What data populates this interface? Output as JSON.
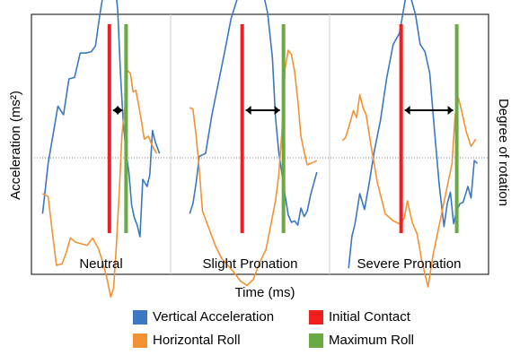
{
  "chart_data": {
    "type": "line",
    "xlabel": "Time (ms)",
    "ylabel": "Acceleration (ms²)",
    "ylabel_right": "Degree of rotation",
    "grid": false,
    "legend_position": "bottom",
    "axis_ranges": {
      "x": [
        0,
        100
      ],
      "y": [
        -100,
        100
      ]
    },
    "panels": [
      {
        "name": "Neutral",
        "initial_contact_x": 56,
        "max_roll_x": 68,
        "vertical_acceleration": [
          [
            8,
            -39
          ],
          [
            12,
            -4
          ],
          [
            19,
            36
          ],
          [
            23,
            30
          ],
          [
            27,
            55
          ],
          [
            31,
            56
          ],
          [
            35,
            73
          ],
          [
            39,
            73
          ],
          [
            43,
            74
          ],
          [
            46,
            78
          ],
          [
            49,
            99
          ],
          [
            52,
            117
          ],
          [
            55,
            113
          ],
          [
            57,
            125
          ],
          [
            60,
            122
          ],
          [
            62,
            103
          ],
          [
            64,
            58
          ],
          [
            66,
            24
          ],
          [
            68,
            4
          ],
          [
            70,
            -10
          ],
          [
            72,
            -33
          ],
          [
            74,
            -42
          ],
          [
            76,
            -47
          ],
          [
            78,
            -55
          ],
          [
            80,
            -15
          ],
          [
            83,
            -20
          ],
          [
            85,
            -12
          ],
          [
            87,
            19
          ],
          [
            89,
            11
          ],
          [
            92,
            3
          ]
        ],
        "horizontal_roll": [
          [
            8,
            -25
          ],
          [
            12,
            -27
          ],
          [
            15,
            -52
          ],
          [
            18,
            -75
          ],
          [
            22,
            -74
          ],
          [
            25,
            -66
          ],
          [
            28,
            -56
          ],
          [
            32,
            -59
          ],
          [
            36,
            -60
          ],
          [
            40,
            -61
          ],
          [
            44,
            -56
          ],
          [
            48,
            -63
          ],
          [
            51,
            -72
          ],
          [
            54,
            -83
          ],
          [
            57,
            -97
          ],
          [
            59,
            -91
          ],
          [
            61,
            -61
          ],
          [
            63,
            -25
          ],
          [
            65,
            16
          ],
          [
            67,
            34
          ],
          [
            69,
            61
          ],
          [
            71,
            59
          ],
          [
            73,
            46
          ],
          [
            75,
            47
          ],
          [
            77,
            37
          ],
          [
            79,
            26
          ],
          [
            81,
            13
          ],
          [
            84,
            15
          ],
          [
            87,
            8
          ],
          [
            90,
            3
          ]
        ]
      },
      {
        "name": "Slight Pronation",
        "initial_contact_x": 45,
        "max_roll_x": 71,
        "vertical_acceleration": [
          [
            12,
            -39
          ],
          [
            14,
            -32
          ],
          [
            16,
            -18
          ],
          [
            18,
            1
          ],
          [
            22,
            3
          ],
          [
            26,
            30
          ],
          [
            30,
            52
          ],
          [
            34,
            74
          ],
          [
            38,
            97
          ],
          [
            42,
            111
          ],
          [
            46,
            122
          ],
          [
            50,
            124
          ],
          [
            54,
            124
          ],
          [
            58,
            116
          ],
          [
            61,
            101
          ],
          [
            64,
            70
          ],
          [
            66,
            28
          ],
          [
            68,
            4
          ],
          [
            70,
            -11
          ],
          [
            72,
            -26
          ],
          [
            74,
            -40
          ],
          [
            76,
            -45
          ],
          [
            78,
            -44
          ],
          [
            80,
            -47
          ],
          [
            82,
            -35
          ],
          [
            84,
            -41
          ],
          [
            86,
            -37
          ],
          [
            88,
            -26
          ],
          [
            90,
            -18
          ],
          [
            92,
            -10
          ]
        ],
        "horizontal_roll": [
          [
            12,
            35
          ],
          [
            14,
            34
          ],
          [
            16,
            16
          ],
          [
            18,
            -8
          ],
          [
            20,
            -37
          ],
          [
            24,
            -49
          ],
          [
            28,
            -61
          ],
          [
            32,
            -70
          ],
          [
            36,
            -75
          ],
          [
            40,
            -80
          ],
          [
            44,
            -86
          ],
          [
            48,
            -89
          ],
          [
            52,
            -85
          ],
          [
            56,
            -73
          ],
          [
            60,
            -64
          ],
          [
            63,
            -47
          ],
          [
            66,
            -30
          ],
          [
            68,
            -12
          ],
          [
            70,
            18
          ],
          [
            72,
            62
          ],
          [
            74,
            75
          ],
          [
            76,
            72
          ],
          [
            78,
            60
          ],
          [
            80,
            40
          ],
          [
            82,
            15
          ],
          [
            84,
            4
          ],
          [
            86,
            -5
          ],
          [
            88,
            -4
          ],
          [
            90,
            -3
          ],
          [
            92,
            -2
          ]
        ]
      },
      {
        "name": "Severe Pronation",
        "initial_contact_x": 45,
        "max_roll_x": 80,
        "vertical_acceleration": [
          [
            12,
            -77
          ],
          [
            14,
            -55
          ],
          [
            16,
            -46
          ],
          [
            19,
            -25
          ],
          [
            22,
            -36
          ],
          [
            25,
            -17
          ],
          [
            28,
            4
          ],
          [
            32,
            26
          ],
          [
            36,
            56
          ],
          [
            40,
            79
          ],
          [
            44,
            87
          ],
          [
            48,
            113
          ],
          [
            51,
            112
          ],
          [
            54,
            100
          ],
          [
            57,
            79
          ],
          [
            60,
            74
          ],
          [
            63,
            59
          ],
          [
            66,
            19
          ],
          [
            69,
            -19
          ],
          [
            72,
            -48
          ],
          [
            74,
            -32
          ],
          [
            76,
            -24
          ],
          [
            78,
            -46
          ],
          [
            80,
            -37
          ],
          [
            82,
            -32
          ],
          [
            84,
            -31
          ],
          [
            87,
            -20
          ],
          [
            89,
            -28
          ],
          [
            91,
            -2
          ],
          [
            93,
            -4
          ]
        ],
        "horizontal_roll": [
          [
            8,
            12
          ],
          [
            10,
            14
          ],
          [
            12,
            21
          ],
          [
            15,
            33
          ],
          [
            17,
            28
          ],
          [
            19,
            44
          ],
          [
            21,
            35
          ],
          [
            23,
            30
          ],
          [
            26,
            9
          ],
          [
            30,
            -17
          ],
          [
            35,
            -39
          ],
          [
            40,
            -44
          ],
          [
            44,
            -46
          ],
          [
            47,
            -42
          ],
          [
            49,
            -30
          ],
          [
            52,
            -45
          ],
          [
            55,
            -53
          ],
          [
            58,
            -72
          ],
          [
            62,
            -90
          ],
          [
            65,
            -68
          ],
          [
            68,
            -52
          ],
          [
            71,
            -36
          ],
          [
            74,
            -20
          ],
          [
            77,
            -4
          ],
          [
            79,
            30
          ],
          [
            81,
            42
          ],
          [
            83,
            33
          ],
          [
            86,
            18
          ],
          [
            89,
            8
          ],
          [
            92,
            13
          ]
        ]
      }
    ],
    "legend": [
      {
        "label": "Vertical Acceleration",
        "color": "#3a78c2"
      },
      {
        "label": "Initial Contact",
        "color": "#f01e1e"
      },
      {
        "label": "Horizontal Roll",
        "color": "#f39232"
      },
      {
        "label": "Maximum Roll",
        "color": "#6aaa45"
      }
    ]
  }
}
